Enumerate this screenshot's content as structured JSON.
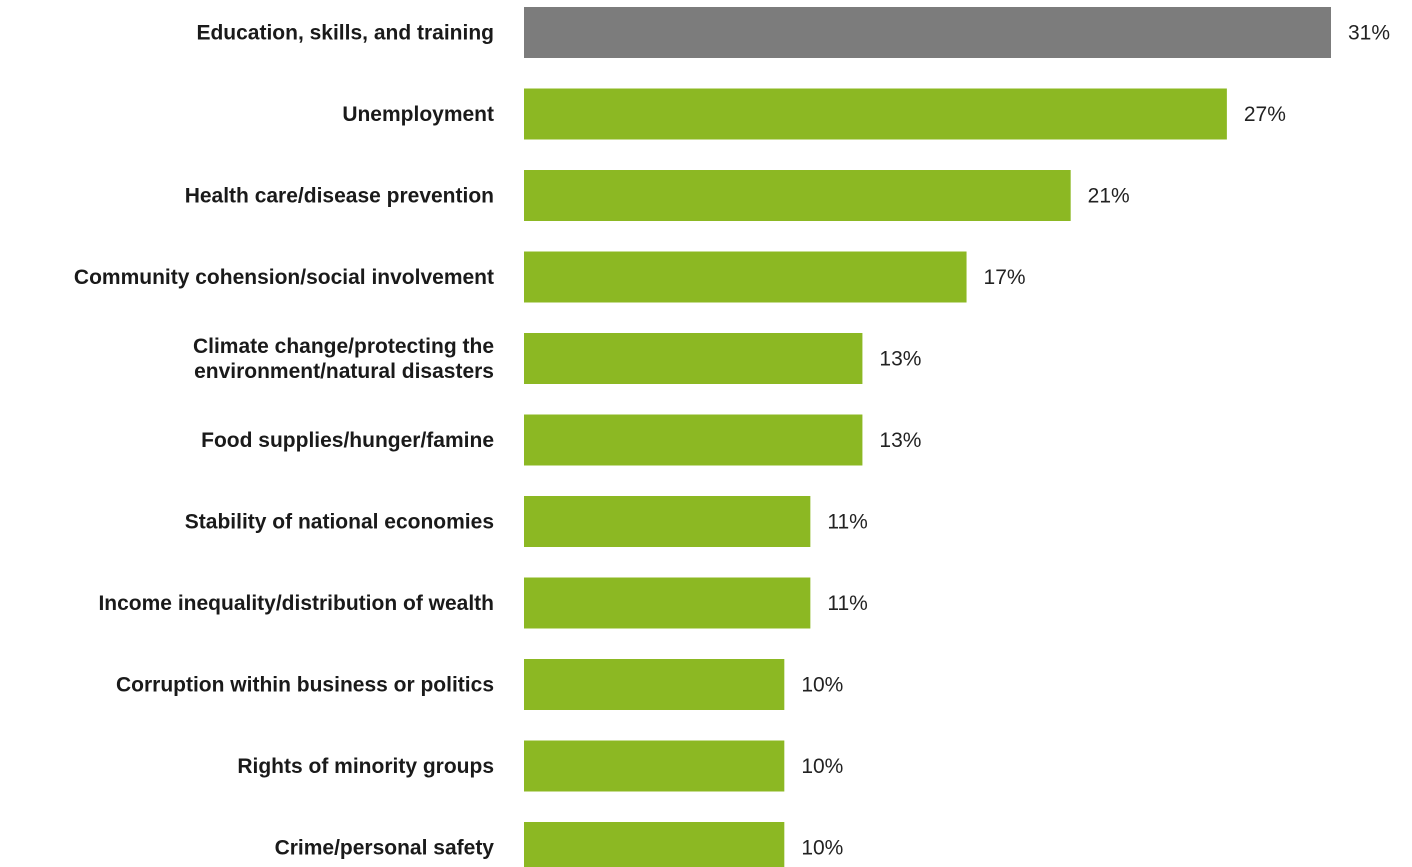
{
  "chart_data": {
    "type": "bar",
    "orientation": "horizontal",
    "categories": [
      [
        "Education, skills, and training"
      ],
      [
        "Unemployment"
      ],
      [
        "Health care/disease prevention"
      ],
      [
        "Community cohension/social involvement"
      ],
      [
        "Climate change/protecting the",
        "environment/natural disasters"
      ],
      [
        "Food supplies/hunger/famine"
      ],
      [
        "Stability of national economies"
      ],
      [
        "Income inequality/distribution of wealth"
      ],
      [
        "Corruption within business or politics"
      ],
      [
        "Rights of minority groups"
      ],
      [
        "Crime/personal safety"
      ]
    ],
    "values": [
      31,
      27,
      21,
      17,
      13,
      13,
      11,
      11,
      10,
      10,
      10
    ],
    "value_labels": [
      "31%",
      "27%",
      "21%",
      "17%",
      "13%",
      "13%",
      "11%",
      "11%",
      "10%",
      "10%",
      "10%"
    ],
    "colors": [
      "#7c7c7c",
      "#8cb823",
      "#8cb823",
      "#8cb823",
      "#8cb823",
      "#8cb823",
      "#8cb823",
      "#8cb823",
      "#8cb823",
      "#8cb823",
      "#8cb823"
    ],
    "highlight_color": "#7c7c7c",
    "bar_color": "#8cb823",
    "xlim": [
      0,
      31
    ],
    "grid": false,
    "legend": "none"
  }
}
